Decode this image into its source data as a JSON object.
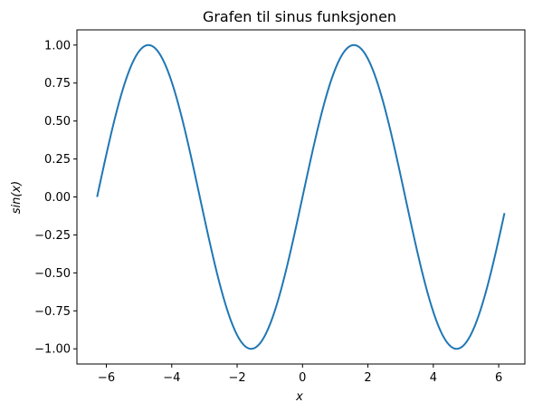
{
  "chart_data": {
    "type": "line",
    "title": "Grafen til sinus funksjonen",
    "xlabel": "x",
    "ylabel": "sin(x)",
    "function": "sin",
    "x_start": -6.2832,
    "x_end": 6.18,
    "x_step": 0.1,
    "xlim": [
      -6.9,
      6.8
    ],
    "ylim": [
      -1.1,
      1.1
    ],
    "x_ticks": [
      -6,
      -4,
      -2,
      0,
      2,
      4,
      6
    ],
    "y_ticks": [
      -1.0,
      -0.75,
      -0.5,
      -0.25,
      0.0,
      0.25,
      0.5,
      0.75,
      1.0
    ],
    "x_tick_labels": [
      "−6",
      "−4",
      "−2",
      "0",
      "2",
      "4",
      "6"
    ],
    "y_tick_labels": [
      "−1.00",
      "−0.75",
      "−0.50",
      "−0.25",
      "0.00",
      "0.25",
      "0.50",
      "0.75",
      "1.00"
    ],
    "grid": false,
    "series": [
      {
        "color": "#1f77b4"
      }
    ]
  }
}
